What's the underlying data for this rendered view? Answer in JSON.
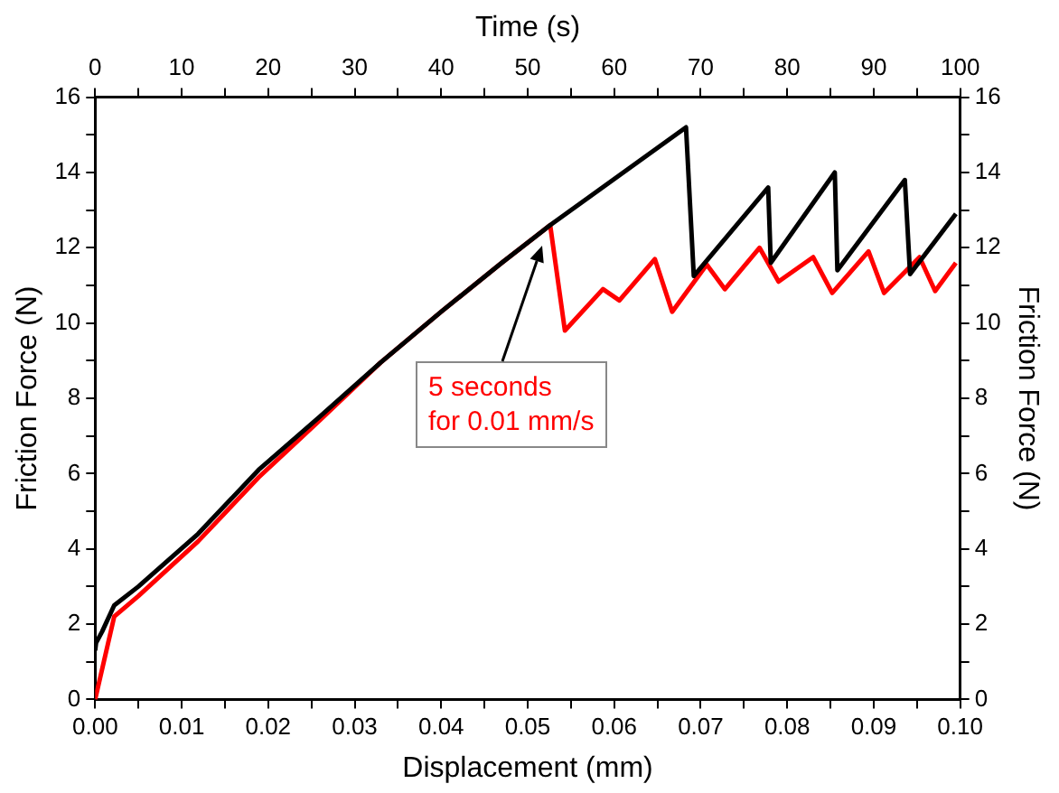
{
  "chart_data": {
    "type": "line",
    "xlabel": "Displacement (mm)",
    "ylabel": "Friction Force (N)",
    "x2label": "Time (s)",
    "y2label": "Friction Force (N)",
    "xlim": [
      0,
      0.1
    ],
    "ylim": [
      0,
      16
    ],
    "x2lim": [
      0,
      100
    ],
    "y2lim": [
      0,
      16
    ],
    "xticks": [
      {
        "value": 0,
        "label": "0.00"
      },
      {
        "value": 0.005,
        "label": null
      },
      {
        "value": 0.01,
        "label": "0.01"
      },
      {
        "value": 0.015,
        "label": null
      },
      {
        "value": 0.02,
        "label": "0.02"
      },
      {
        "value": 0.025,
        "label": null
      },
      {
        "value": 0.03,
        "label": "0.03"
      },
      {
        "value": 0.035,
        "label": null
      },
      {
        "value": 0.04,
        "label": "0.04"
      },
      {
        "value": 0.045,
        "label": null
      },
      {
        "value": 0.05,
        "label": "0.05"
      },
      {
        "value": 0.055,
        "label": null
      },
      {
        "value": 0.06,
        "label": "0.06"
      },
      {
        "value": 0.065,
        "label": null
      },
      {
        "value": 0.07,
        "label": "0.07"
      },
      {
        "value": 0.075,
        "label": null
      },
      {
        "value": 0.08,
        "label": "0.08"
      },
      {
        "value": 0.085,
        "label": null
      },
      {
        "value": 0.09,
        "label": "0.09"
      },
      {
        "value": 0.095,
        "label": null
      },
      {
        "value": 0.1,
        "label": "0.10"
      }
    ],
    "yticks": [
      0,
      {
        "value": 1,
        "label": null
      },
      2,
      {
        "value": 3,
        "label": null
      },
      4,
      {
        "value": 5,
        "label": null
      },
      6,
      {
        "value": 7,
        "label": null
      },
      8,
      {
        "value": 9,
        "label": null
      },
      10,
      {
        "value": 11,
        "label": null
      },
      12,
      {
        "value": 13,
        "label": null
      },
      14,
      {
        "value": 15,
        "label": null
      },
      16
    ],
    "x2ticks": [
      0,
      {
        "value": 5,
        "label": null
      },
      10,
      {
        "value": 15,
        "label": null
      },
      20,
      {
        "value": 25,
        "label": null
      },
      30,
      {
        "value": 35,
        "label": null
      },
      40,
      {
        "value": 45,
        "label": null
      },
      50,
      {
        "value": 55,
        "label": null
      },
      60,
      {
        "value": 65,
        "label": null
      },
      70,
      {
        "value": 75,
        "label": null
      },
      80,
      {
        "value": 85,
        "label": null
      },
      90,
      {
        "value": 95,
        "label": null
      },
      100
    ],
    "y2ticks": [
      0,
      {
        "value": 1,
        "label": null
      },
      2,
      {
        "value": 3,
        "label": null
      },
      4,
      {
        "value": 5,
        "label": null
      },
      6,
      {
        "value": 7,
        "label": null
      },
      8,
      {
        "value": 9,
        "label": null
      },
      10,
      {
        "value": 11,
        "label": null
      },
      12,
      {
        "value": 13,
        "label": null
      },
      14,
      {
        "value": 15,
        "label": null
      },
      16
    ],
    "grid": false,
    "legend": false,
    "marker": "none",
    "line_style": "solid",
    "annotations": [
      "5 seconds\nfor 0.01 mm/s"
    ],
    "series": [
      {
        "color": "#000000",
        "x": [
          0,
          0.0001,
          0.0008,
          0.0022,
          0.005,
          0.0119,
          0.0189,
          0.0259,
          0.033,
          0.04,
          0.047,
          0.0526,
          0.0683,
          0.0692,
          0.0778,
          0.0781,
          0.0855,
          0.0858,
          0.0936,
          0.0942,
          0.0995
        ],
        "values": [
          1.3,
          1.5,
          1.8,
          2.5,
          3.0,
          4.4,
          6.1,
          7.5,
          8.95,
          10.3,
          11.6,
          12.6,
          15.2,
          11.25,
          13.6,
          11.6,
          14.0,
          11.4,
          13.8,
          11.3,
          12.9
        ]
      },
      {
        "color": "#ff0000",
        "x": [
          0,
          0.0022,
          0.005,
          0.0119,
          0.0189,
          0.0259,
          0.033,
          0.04,
          0.047,
          0.0526,
          0.0543,
          0.0587,
          0.0606,
          0.0647,
          0.0667,
          0.0707,
          0.0728,
          0.0768,
          0.079,
          0.083,
          0.0852,
          0.0894,
          0.0912,
          0.0953,
          0.0971,
          0.0995
        ],
        "values": [
          0,
          2.2,
          2.75,
          4.2,
          5.9,
          7.4,
          8.95,
          10.3,
          11.6,
          12.6,
          9.8,
          10.9,
          10.6,
          11.7,
          10.3,
          11.55,
          10.9,
          12.0,
          11.1,
          11.75,
          10.8,
          11.9,
          10.8,
          11.75,
          10.85,
          11.6
        ]
      }
    ]
  }
}
